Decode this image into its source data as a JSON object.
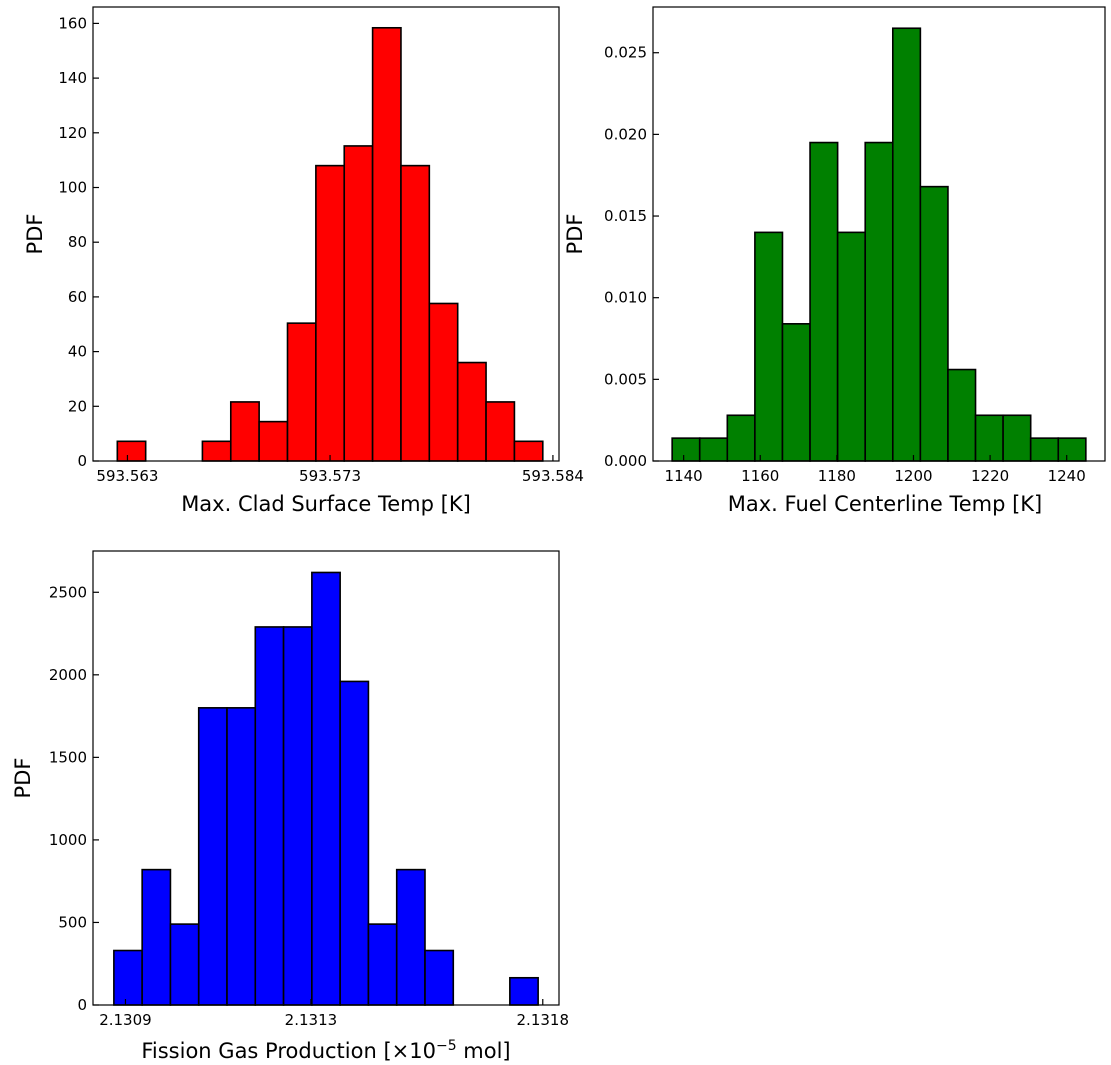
{
  "chart_data": [
    {
      "type": "bar",
      "title": "",
      "xlabel": "Max. Clad Surface Temp [K]",
      "ylabel": "PDF",
      "color": "#ff0000",
      "edge_color": "#000000",
      "bin_edges": [
        593.5625,
        593.5639,
        593.5653,
        593.5667,
        593.5681,
        593.5695,
        593.5709,
        593.5723,
        593.5737,
        593.5751,
        593.5765,
        593.5779,
        593.5793,
        593.5807,
        593.5821,
        593.5835
      ],
      "values": [
        7.2,
        0,
        0,
        7.2,
        21.6,
        14.4,
        50.4,
        108.0,
        115.2,
        158.4,
        108.0,
        57.6,
        36.0,
        21.6,
        7.2
      ],
      "xlim": [
        593.5613,
        593.5843
      ],
      "ylim": [
        0,
        166
      ],
      "xticks": [
        593.563,
        593.573,
        593.584
      ],
      "xtick_labels": [
        "593.563",
        "593.573",
        "593.584"
      ],
      "yticks": [
        0,
        20,
        40,
        60,
        80,
        100,
        120,
        140,
        160
      ],
      "ytick_labels": [
        "0",
        "20",
        "40",
        "60",
        "80",
        "100",
        "120",
        "140",
        "160"
      ]
    },
    {
      "type": "bar",
      "title": "",
      "xlabel": "Max. Fuel Centerline Temp [K]",
      "ylabel": "PDF",
      "color": "#008000",
      "edge_color": "#000000",
      "bin_edges": [
        1137.0,
        1144.2,
        1151.4,
        1158.6,
        1165.8,
        1173.0,
        1180.2,
        1187.4,
        1194.6,
        1201.8,
        1209.0,
        1216.2,
        1223.4,
        1230.6,
        1237.8,
        1245.0
      ],
      "values": [
        0.0014,
        0.0014,
        0.0028,
        0.014,
        0.0084,
        0.0195,
        0.014,
        0.0195,
        0.0265,
        0.0168,
        0.0056,
        0.0028,
        0.0028,
        0.0014,
        0.0014
      ],
      "xlim": [
        1132.0,
        1250.0
      ],
      "ylim": [
        0,
        0.0278
      ],
      "xticks": [
        1140,
        1160,
        1180,
        1200,
        1220,
        1240
      ],
      "xtick_labels": [
        "1140",
        "1160",
        "1180",
        "1200",
        "1220",
        "1240"
      ],
      "yticks": [
        0,
        0.005,
        0.01,
        0.015,
        0.02,
        0.025
      ],
      "ytick_labels": [
        "0.000",
        "0.005",
        "0.010",
        "0.015",
        "0.020",
        "0.025"
      ]
    },
    {
      "type": "bar",
      "title": "",
      "xlabel_main": "Fission Gas Production [×10",
      "xlabel_sup": "−5",
      "xlabel_tail": " mol]",
      "ylabel": "PDF",
      "color": "#0000ff",
      "edge_color": "#000000",
      "bin_edges": [
        2.130875,
        2.130936,
        2.130997,
        2.131058,
        2.131119,
        2.13118,
        2.131241,
        2.131302,
        2.131363,
        2.131424,
        2.131485,
        2.131546,
        2.131607,
        2.131668,
        2.131729,
        2.13179
      ],
      "values": [
        330,
        820,
        490,
        1800,
        1800,
        2290,
        2290,
        2620,
        1960,
        490,
        820,
        330,
        0,
        0,
        165
      ],
      "xlim": [
        2.13083,
        2.131835
      ],
      "ylim": [
        0,
        2750
      ],
      "xticks": [
        2.1309,
        2.1313,
        2.1318
      ],
      "xtick_labels": [
        "2.1309",
        "2.1313",
        "2.1318"
      ],
      "yticks": [
        0,
        500,
        1000,
        1500,
        2000,
        2500
      ],
      "ytick_labels": [
        "0",
        "500",
        "1000",
        "1500",
        "2000",
        "2500"
      ]
    }
  ]
}
